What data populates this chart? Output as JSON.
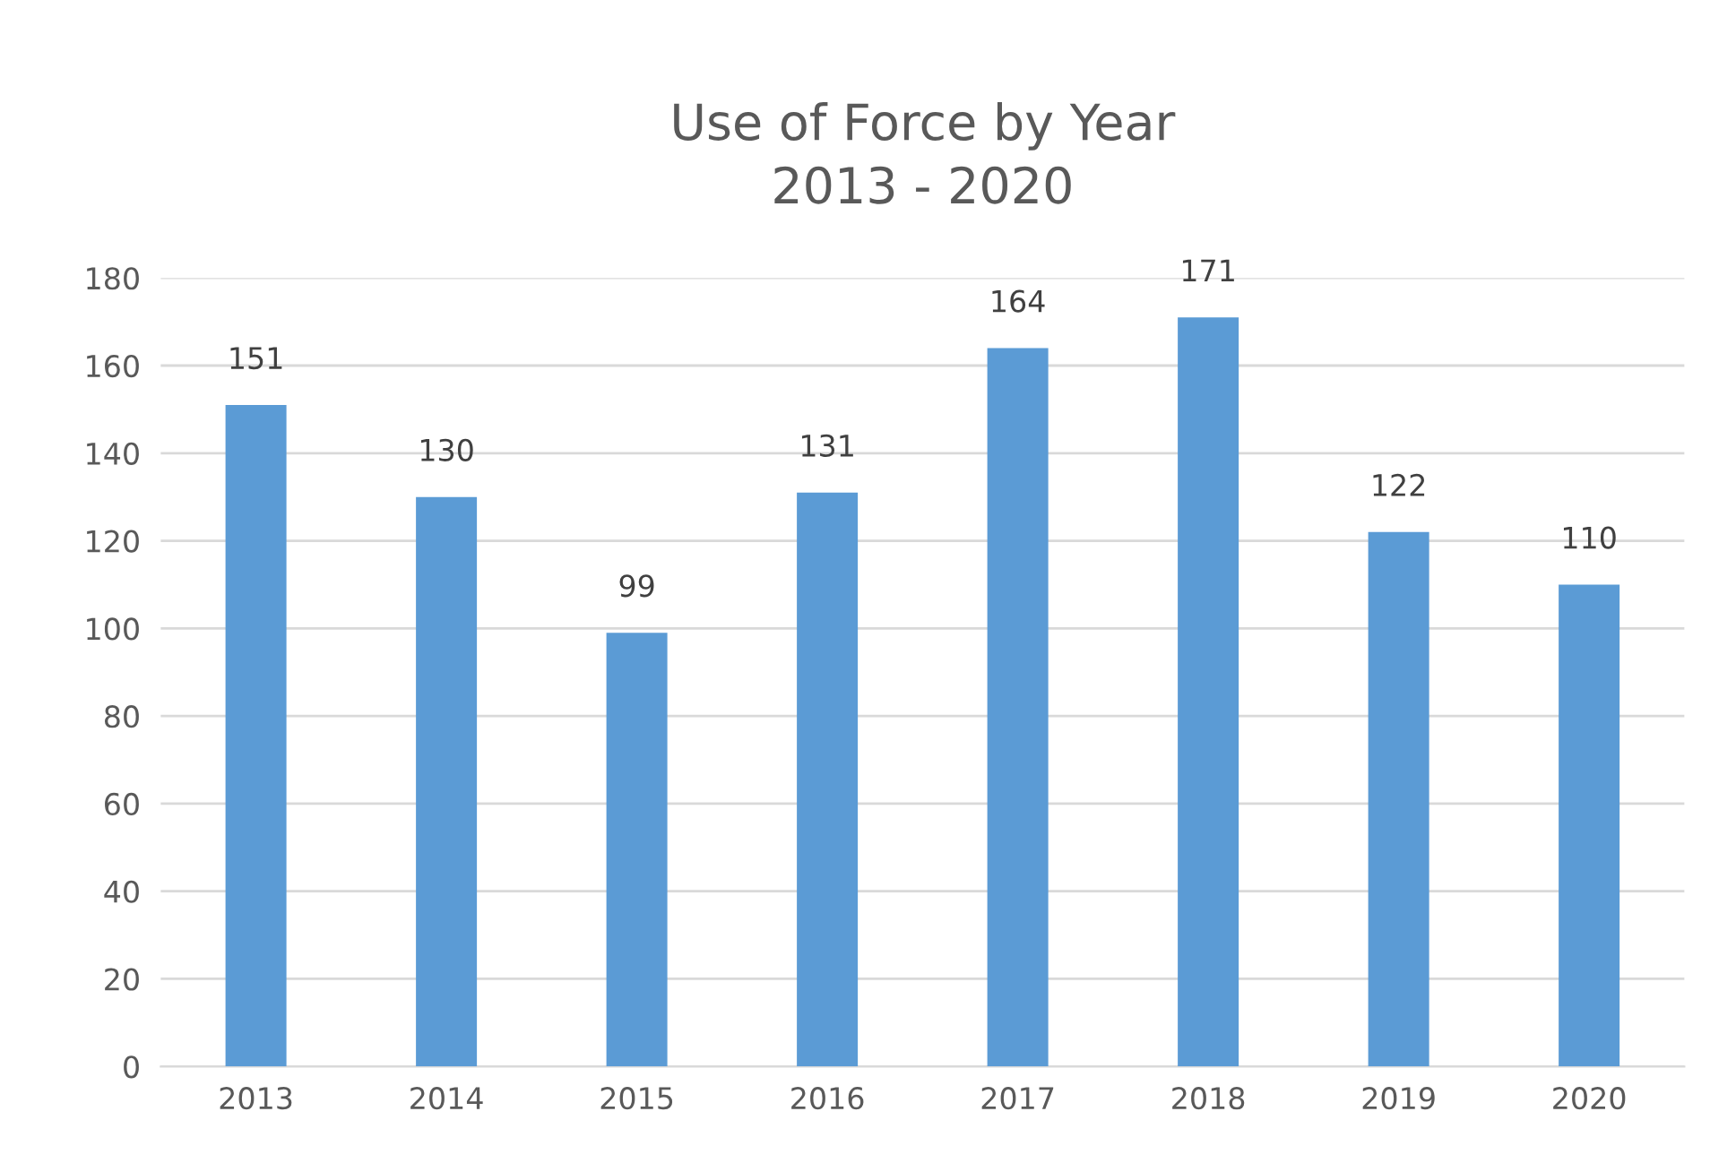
{
  "chart_data": {
    "type": "bar",
    "title": "Use of Force by Year\n2013 - 2020",
    "categories": [
      "2013",
      "2014",
      "2015",
      "2016",
      "2017",
      "2018",
      "2019",
      "2020"
    ],
    "values": [
      151,
      130,
      99,
      131,
      164,
      171,
      122,
      110
    ],
    "color": "#5b9bd5",
    "ylim": [
      0,
      180
    ],
    "yticks": [
      0,
      20,
      40,
      60,
      80,
      100,
      120,
      140,
      160,
      180
    ],
    "grid": "y",
    "data_labels": true,
    "legend": false
  }
}
